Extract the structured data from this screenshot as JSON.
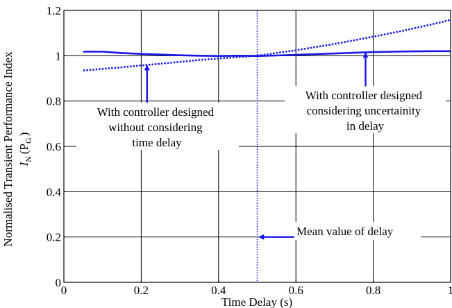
{
  "chart_data": {
    "type": "line",
    "title": "",
    "xlabel": "Time Delay (s)",
    "ylabel_line1": "Normalised Transient Performance Index",
    "ylabel_line2_main": "I",
    "ylabel_line2_sub": "N",
    "ylabel_line2_arg": "(P",
    "ylabel_line2_arg_sub": "G",
    "ylabel_line2_close": ")",
    "xlim": [
      0,
      1
    ],
    "ylim": [
      0,
      1.2
    ],
    "x_ticks": [
      0,
      0.2,
      0.4,
      0.6,
      0.8,
      1
    ],
    "x_tick_labels": [
      "0",
      "0.2",
      "0.4",
      "0.6",
      "0.8",
      "1"
    ],
    "y_ticks": [
      0,
      0.2,
      0.4,
      0.6,
      0.8,
      1,
      1.2
    ],
    "y_tick_labels": [
      "0",
      "0.2",
      "0.4",
      "0.6",
      "0.8",
      "1",
      "1.2"
    ],
    "grid": true,
    "line_color": "#1515e8",
    "series": [
      {
        "style": "solid",
        "x": [
          0.05,
          0.1,
          0.15,
          0.2,
          0.25,
          0.3,
          0.35,
          0.4,
          0.45,
          0.5,
          0.55,
          0.6,
          0.65,
          0.7,
          0.75,
          0.8,
          0.85,
          0.9,
          0.95,
          1.0
        ],
        "y": [
          1.018,
          1.018,
          1.012,
          1.008,
          1.005,
          1.002,
          1.0,
          0.999,
          1.0,
          0.999,
          1.001,
          1.004,
          1.007,
          1.01,
          1.013,
          1.016,
          1.018,
          1.019,
          1.02,
          1.02
        ]
      },
      {
        "style": "dotted",
        "x": [
          0.05,
          0.1,
          0.15,
          0.2,
          0.25,
          0.3,
          0.35,
          0.4,
          0.45,
          0.5,
          0.55,
          0.6,
          0.65,
          0.7,
          0.75,
          0.8,
          0.85,
          0.9,
          0.95,
          1.0
        ],
        "y": [
          0.935,
          0.942,
          0.949,
          0.957,
          0.965,
          0.973,
          0.981,
          0.988,
          0.994,
          1.0,
          1.012,
          1.024,
          1.038,
          1.052,
          1.068,
          1.084,
          1.101,
          1.119,
          1.138,
          1.158
        ]
      }
    ],
    "mean_delay_x": 0.5,
    "annotations": {
      "without": {
        "lines": [
          "With controller designed",
          "without considering",
          "time delay"
        ],
        "arrow_x": 0.215,
        "arrow_from_y": 0.793,
        "arrow_to_y": 0.957
      },
      "uncertainty": {
        "lines": [
          "With controller designed",
          "considering uncertainity",
          "in delay"
        ],
        "arrow_x": 0.78,
        "arrow_from_y": 0.865,
        "arrow_to_y": 1.013
      },
      "mean": {
        "text": "Mean value of delay",
        "arrow_from_x": 0.595,
        "arrow_to_x": 0.505,
        "arrow_y": 0.2
      }
    }
  }
}
